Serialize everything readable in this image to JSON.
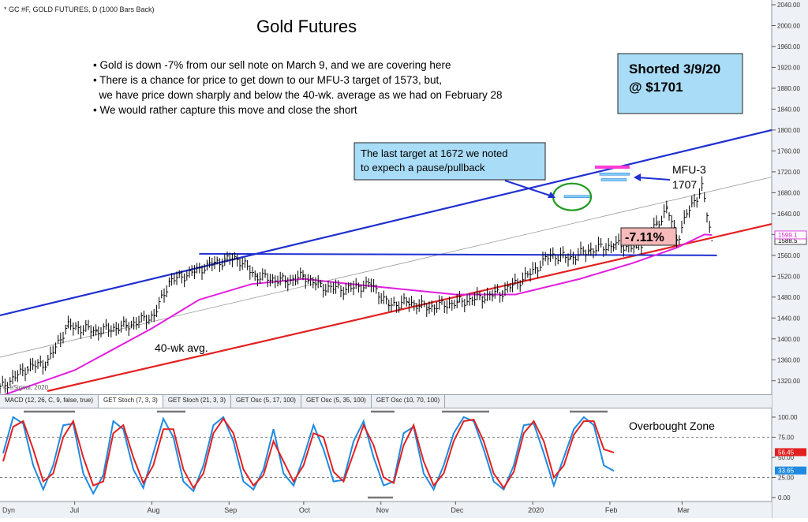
{
  "chart_data": {
    "type": "line",
    "header": "* GC #F, GOLD FUTURES, D (1000 Bars Back)",
    "title": "Gold Futures",
    "watermark": "© eSignal, 2020",
    "bullets": [
      "• Gold is down -7% from our sell note on March 9, and we are covering here",
      "• There is a chance for price to get down to our MFU-3 target of 1573, but,",
      "  we have price down sharply and below the 40-wk. average as we had on February 28",
      "• We would rather capture this move and close the short"
    ],
    "callout_shorted": [
      "Shorted 3/9/20",
      "@ $1701"
    ],
    "callout_target": [
      "The last target at 1672 we noted",
      "to expech a pause/pullback"
    ],
    "label_mfu": [
      "MFU-3",
      "1707"
    ],
    "label_pct": "-7.11%",
    "label_40wk": "40-wk avg.",
    "label_overbought": "Overbought Zone",
    "price_axis": {
      "min": 1300,
      "max": 2040,
      "ticks": [
        "1320.00",
        "1360.00",
        "1400.00",
        "1440.00",
        "1480.00",
        "1520.00",
        "1560.00",
        "1600.00",
        "1640.00",
        "1680.00",
        "1720.00",
        "1760.00",
        "1800.00",
        "1840.00",
        "1880.00",
        "1920.00",
        "1960.00",
        "2000.00",
        "2040.00"
      ],
      "last_price_tag": "1588.5",
      "ma_tag": "1599.1"
    },
    "osc_axis": {
      "ticks": [
        "0.00",
        "25.00",
        "50.00",
        "75.00",
        "100.00"
      ],
      "tag_red": "56.45",
      "tag_blue": "33.65"
    },
    "x_axis": {
      "months": [
        "Jul",
        "Aug",
        "Sep",
        "Oct",
        "Nov",
        "Dec",
        "2020",
        "Feb",
        "Mar"
      ],
      "corner_label": "Dyn"
    },
    "tabs": [
      "MACD (12, 26, C, 9, false, true)",
      "GET Stoch (7, 3, 3)",
      "GET Stoch (21, 3, 3)",
      "GET Osc (5, 17, 100)",
      "GET Osc (5, 35, 100)",
      "GET Osc (10, 70, 100)"
    ],
    "price_series": {
      "name": "Gold Futures close",
      "x": [
        "2019-06-01",
        "2019-06-12",
        "2019-06-20",
        "2019-06-28",
        "2019-07-10",
        "2019-07-22",
        "2019-08-02",
        "2019-08-08",
        "2019-08-16",
        "2019-08-26",
        "2019-09-04",
        "2019-09-12",
        "2019-09-24",
        "2019-10-01",
        "2019-10-08",
        "2019-10-18",
        "2019-10-28",
        "2019-11-04",
        "2019-11-12",
        "2019-11-20",
        "2019-12-02",
        "2019-12-12",
        "2019-12-20",
        "2019-12-31",
        "2020-01-08",
        "2020-01-16",
        "2020-01-24",
        "2020-02-03",
        "2020-02-12",
        "2020-02-20",
        "2020-02-24",
        "2020-02-28",
        "2020-03-03",
        "2020-03-09",
        "2020-03-13"
      ],
      "y": [
        1305,
        1345,
        1355,
        1425,
        1415,
        1425,
        1445,
        1510,
        1525,
        1545,
        1555,
        1520,
        1510,
        1520,
        1500,
        1495,
        1505,
        1465,
        1470,
        1460,
        1470,
        1480,
        1490,
        1525,
        1560,
        1555,
        1570,
        1580,
        1575,
        1620,
        1650,
        1590,
        1640,
        1690,
        1588
      ]
    },
    "ma_series": {
      "name": "40-wk avg.",
      "x": [
        "2019-06-01",
        "2019-07-01",
        "2019-08-01",
        "2019-08-20",
        "2019-09-10",
        "2019-10-01",
        "2019-10-20",
        "2019-11-10",
        "2019-12-01",
        "2019-12-25",
        "2020-01-20",
        "2020-02-10",
        "2020-02-28",
        "2020-03-10",
        "2020-03-13"
      ],
      "y": [
        1290,
        1340,
        1420,
        1475,
        1505,
        1515,
        1505,
        1495,
        1485,
        1485,
        1515,
        1545,
        1575,
        1600,
        1599
      ]
    },
    "trendlines": [
      {
        "name": "upper channel",
        "x": [
          "2019-06-01",
          "2020-04-06"
        ],
        "y": [
          1445,
          1800
        ]
      },
      {
        "name": "lower channel",
        "x": [
          "2019-06-20",
          "2020-04-06"
        ],
        "y": [
          1300,
          1620
        ]
      },
      {
        "name": "mid channel",
        "x": [
          "2019-06-01",
          "2020-04-06"
        ],
        "y": [
          1365,
          1710
        ]
      },
      {
        "name": "horizontal support",
        "x": [
          "2019-08-20",
          "2020-03-15"
        ],
        "y": [
          1563,
          1560
        ]
      }
    ],
    "stoch_fast": [
      55,
      100,
      92,
      40,
      10,
      40,
      90,
      92,
      30,
      5,
      28,
      95,
      85,
      35,
      12,
      55,
      98,
      75,
      20,
      8,
      40,
      90,
      100,
      70,
      20,
      10,
      35,
      85,
      30,
      15,
      50,
      90,
      60,
      20,
      22,
      70,
      95,
      50,
      15,
      20,
      80,
      88,
      30,
      10,
      40,
      80,
      100,
      95,
      60,
      20,
      10,
      40,
      90,
      92,
      55,
      15,
      50,
      85,
      100,
      90,
      40,
      33
    ],
    "stoch_slow": [
      45,
      88,
      95,
      60,
      20,
      30,
      75,
      95,
      50,
      15,
      20,
      80,
      90,
      50,
      18,
      40,
      85,
      85,
      35,
      12,
      30,
      80,
      98,
      80,
      35,
      15,
      28,
      70,
      45,
      20,
      40,
      80,
      75,
      32,
      20,
      55,
      90,
      65,
      25,
      18,
      65,
      90,
      45,
      15,
      30,
      70,
      95,
      97,
      70,
      30,
      12,
      32,
      80,
      95,
      70,
      25,
      40,
      78,
      95,
      95,
      60,
      56
    ],
    "overbought_level": 75,
    "oversold_level": 25
  }
}
